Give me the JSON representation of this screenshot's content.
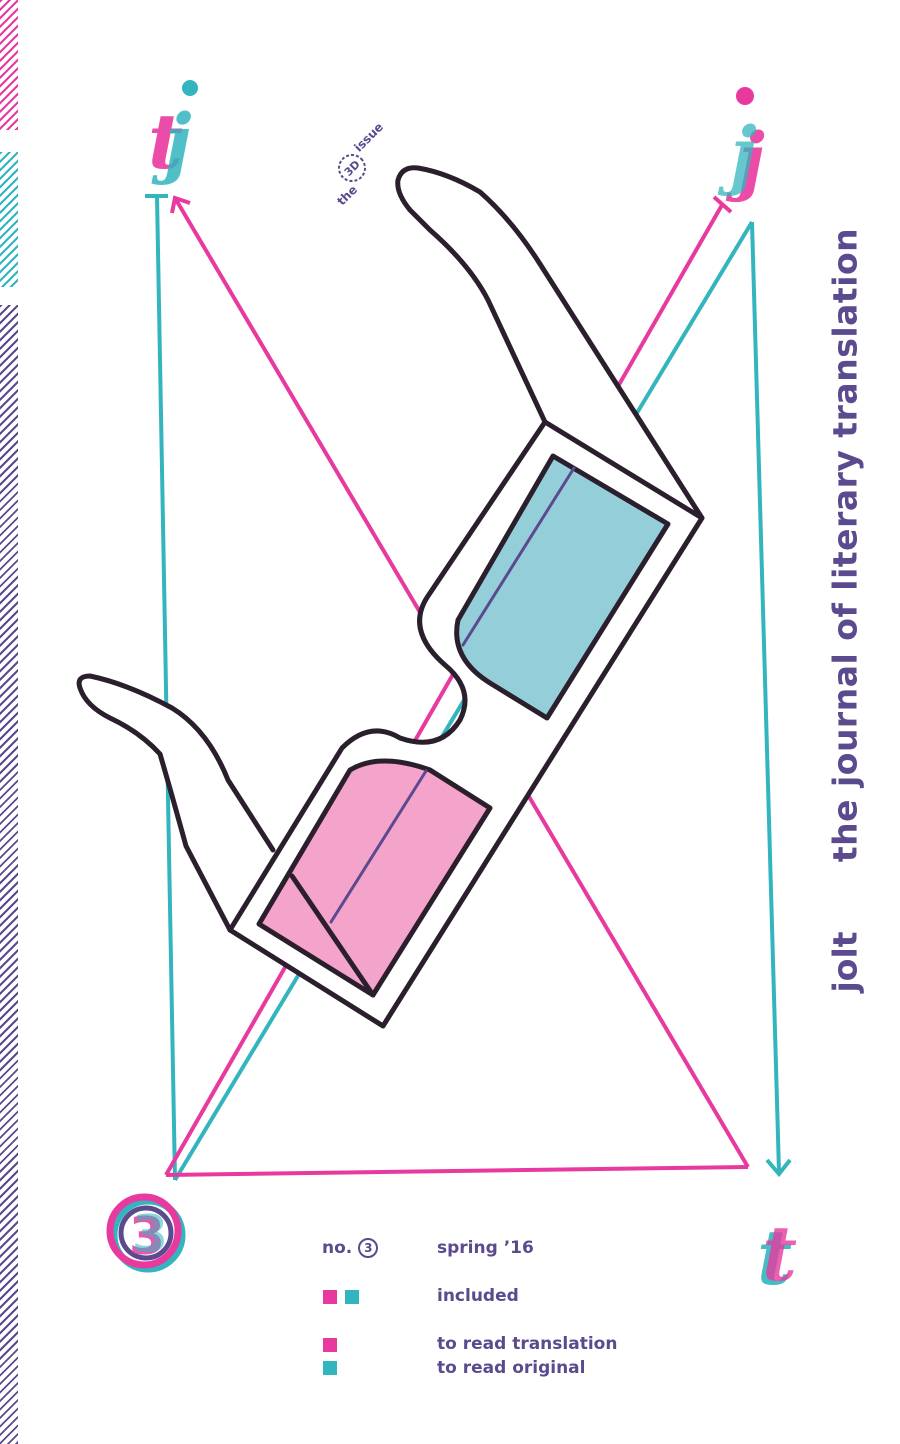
{
  "cover": {
    "journal_title": "the journal of literary translation",
    "journal_name": "jolt",
    "badge": {
      "the": "the",
      "mark": "3D",
      "issue": "issue"
    },
    "corner_letters": {
      "top_left": "tj",
      "top_right": "j",
      "bottom_right": "t",
      "bottom_left": "3"
    }
  },
  "info": {
    "number_label": "no.",
    "number_value": "3",
    "season": "spring ’16",
    "included": "included",
    "legend": [
      {
        "color": "pink",
        "label": "to read translation"
      },
      {
        "color": "teal",
        "label": "to read original"
      }
    ]
  },
  "colors": {
    "pink": "#e8399f",
    "teal": "#33b5bf",
    "purple": "#5b4a8e",
    "lens_pink": "#f4a3cb",
    "lens_teal": "#94cfd9",
    "outline": "#2b1f2d"
  },
  "icons": [
    "3d-glasses-icon",
    "triangle-arrows-icon",
    "stripe-bars"
  ]
}
